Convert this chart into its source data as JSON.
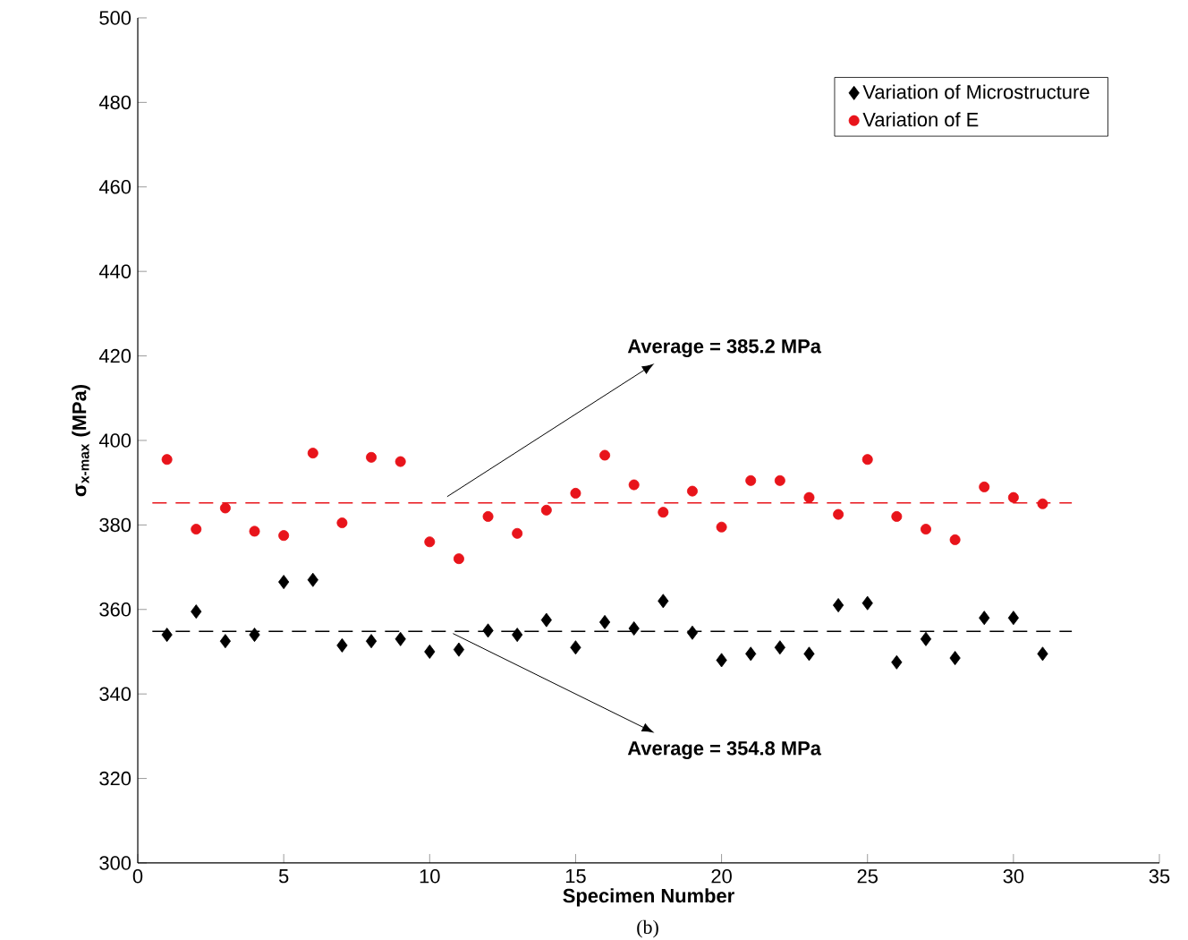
{
  "chart_data": {
    "type": "scatter",
    "xlabel": "Specimen Number",
    "ylabel": "σ$_{x-max}$ (MPa)",
    "x": [
      1,
      2,
      3,
      4,
      5,
      6,
      7,
      8,
      9,
      10,
      11,
      12,
      13,
      14,
      15,
      16,
      17,
      18,
      19,
      20,
      21,
      22,
      23,
      24,
      25,
      26,
      27,
      28,
      29,
      30,
      31
    ],
    "series": [
      {
        "name": "Variation of Microstructure",
        "color": "#000000",
        "marker": "diamond",
        "values": [
          354,
          359.5,
          352.5,
          354,
          366.5,
          367,
          351.5,
          352.5,
          353,
          350,
          350.5,
          355,
          354,
          357.5,
          351,
          357,
          355.5,
          362,
          354.5,
          348,
          349.5,
          351,
          349.5,
          361,
          361.5,
          347.5,
          353,
          348.5,
          358,
          358,
          349.5
        ]
      },
      {
        "name": "Variation of E",
        "color": "#e8141b",
        "marker": "circle",
        "values": [
          395.5,
          379,
          384,
          378.5,
          377.5,
          397,
          380.5,
          396,
          395,
          376,
          372,
          382,
          378,
          383.5,
          387.5,
          396.5,
          389.5,
          383,
          388,
          379.5,
          390.5,
          390.5,
          386.5,
          382.5,
          395.5,
          382,
          379,
          376.5,
          389,
          386.5,
          385
        ]
      }
    ],
    "ref_lines": [
      {
        "axis": "y",
        "value": 385.2,
        "color": "#e8141b",
        "line_style": "dashed"
      },
      {
        "axis": "y",
        "value": 354.8,
        "color": "#000000",
        "line_style": "dashed"
      }
    ],
    "annotations": [
      {
        "text": "**Average = 385.2 MPa**",
        "x": 10.6,
        "y": 385.2
      },
      {
        "text": "**Average = 354.8 MPa**",
        "x": 10.8,
        "y": 354.8
      },
      "(b)"
    ],
    "xlim": [
      0,
      35
    ],
    "ylim": [
      300,
      500
    ],
    "xticks": [
      0,
      5,
      10,
      15,
      20,
      25,
      30,
      35
    ],
    "yticks": [
      300,
      320,
      340,
      360,
      380,
      400,
      420,
      440,
      460,
      480,
      500
    ],
    "legend": "top right",
    "grid": false
  }
}
